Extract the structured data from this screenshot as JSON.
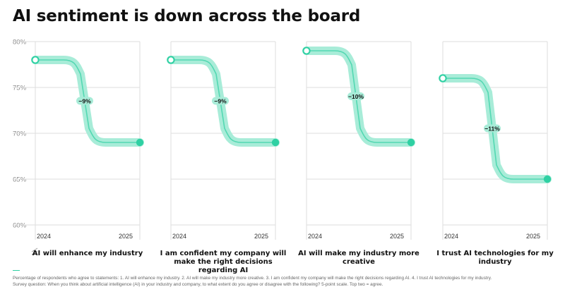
{
  "title": "AI sentiment is down across the board",
  "colors": {
    "accent": "#2fd0a3",
    "band": "#a8ecd8",
    "grid": "#dddddd"
  },
  "chart_data": {
    "type": "line",
    "title": "AI sentiment is down across the board",
    "ylim": [
      60,
      80
    ],
    "y_ticks": [
      "80%",
      "75%",
      "70%",
      "65%",
      "60%"
    ],
    "y_tick_values": [
      80,
      75,
      70,
      65,
      60
    ],
    "x": [
      "2024",
      "2025"
    ],
    "panels": [
      {
        "caption": "AI will enhance my industry",
        "values": [
          78,
          69
        ],
        "change_label": "−9%"
      },
      {
        "caption": "I am confident my company will make the right decisions regarding AI",
        "values": [
          78,
          69
        ],
        "change_label": "−9%"
      },
      {
        "caption": "AI will make my industry more creative",
        "values": [
          79,
          69
        ],
        "change_label": "−10%"
      },
      {
        "caption": "I trust AI technologies for my industry",
        "values": [
          76,
          65
        ],
        "change_label": "−11%"
      }
    ]
  },
  "footnote": [
    "Percentage of respondents who agree to statements: 1. AI will enhance my industry. 2. AI will make my industry more creative. 3. I am confident my company will make the right decisions regarding AI. 4. I trust AI technologies for my industry.",
    "Survey question: When you think about artificial intelligence (AI) in your industry and company, to what extent do you agree or disagree with the following? 5-point scale. Top two = agree."
  ]
}
